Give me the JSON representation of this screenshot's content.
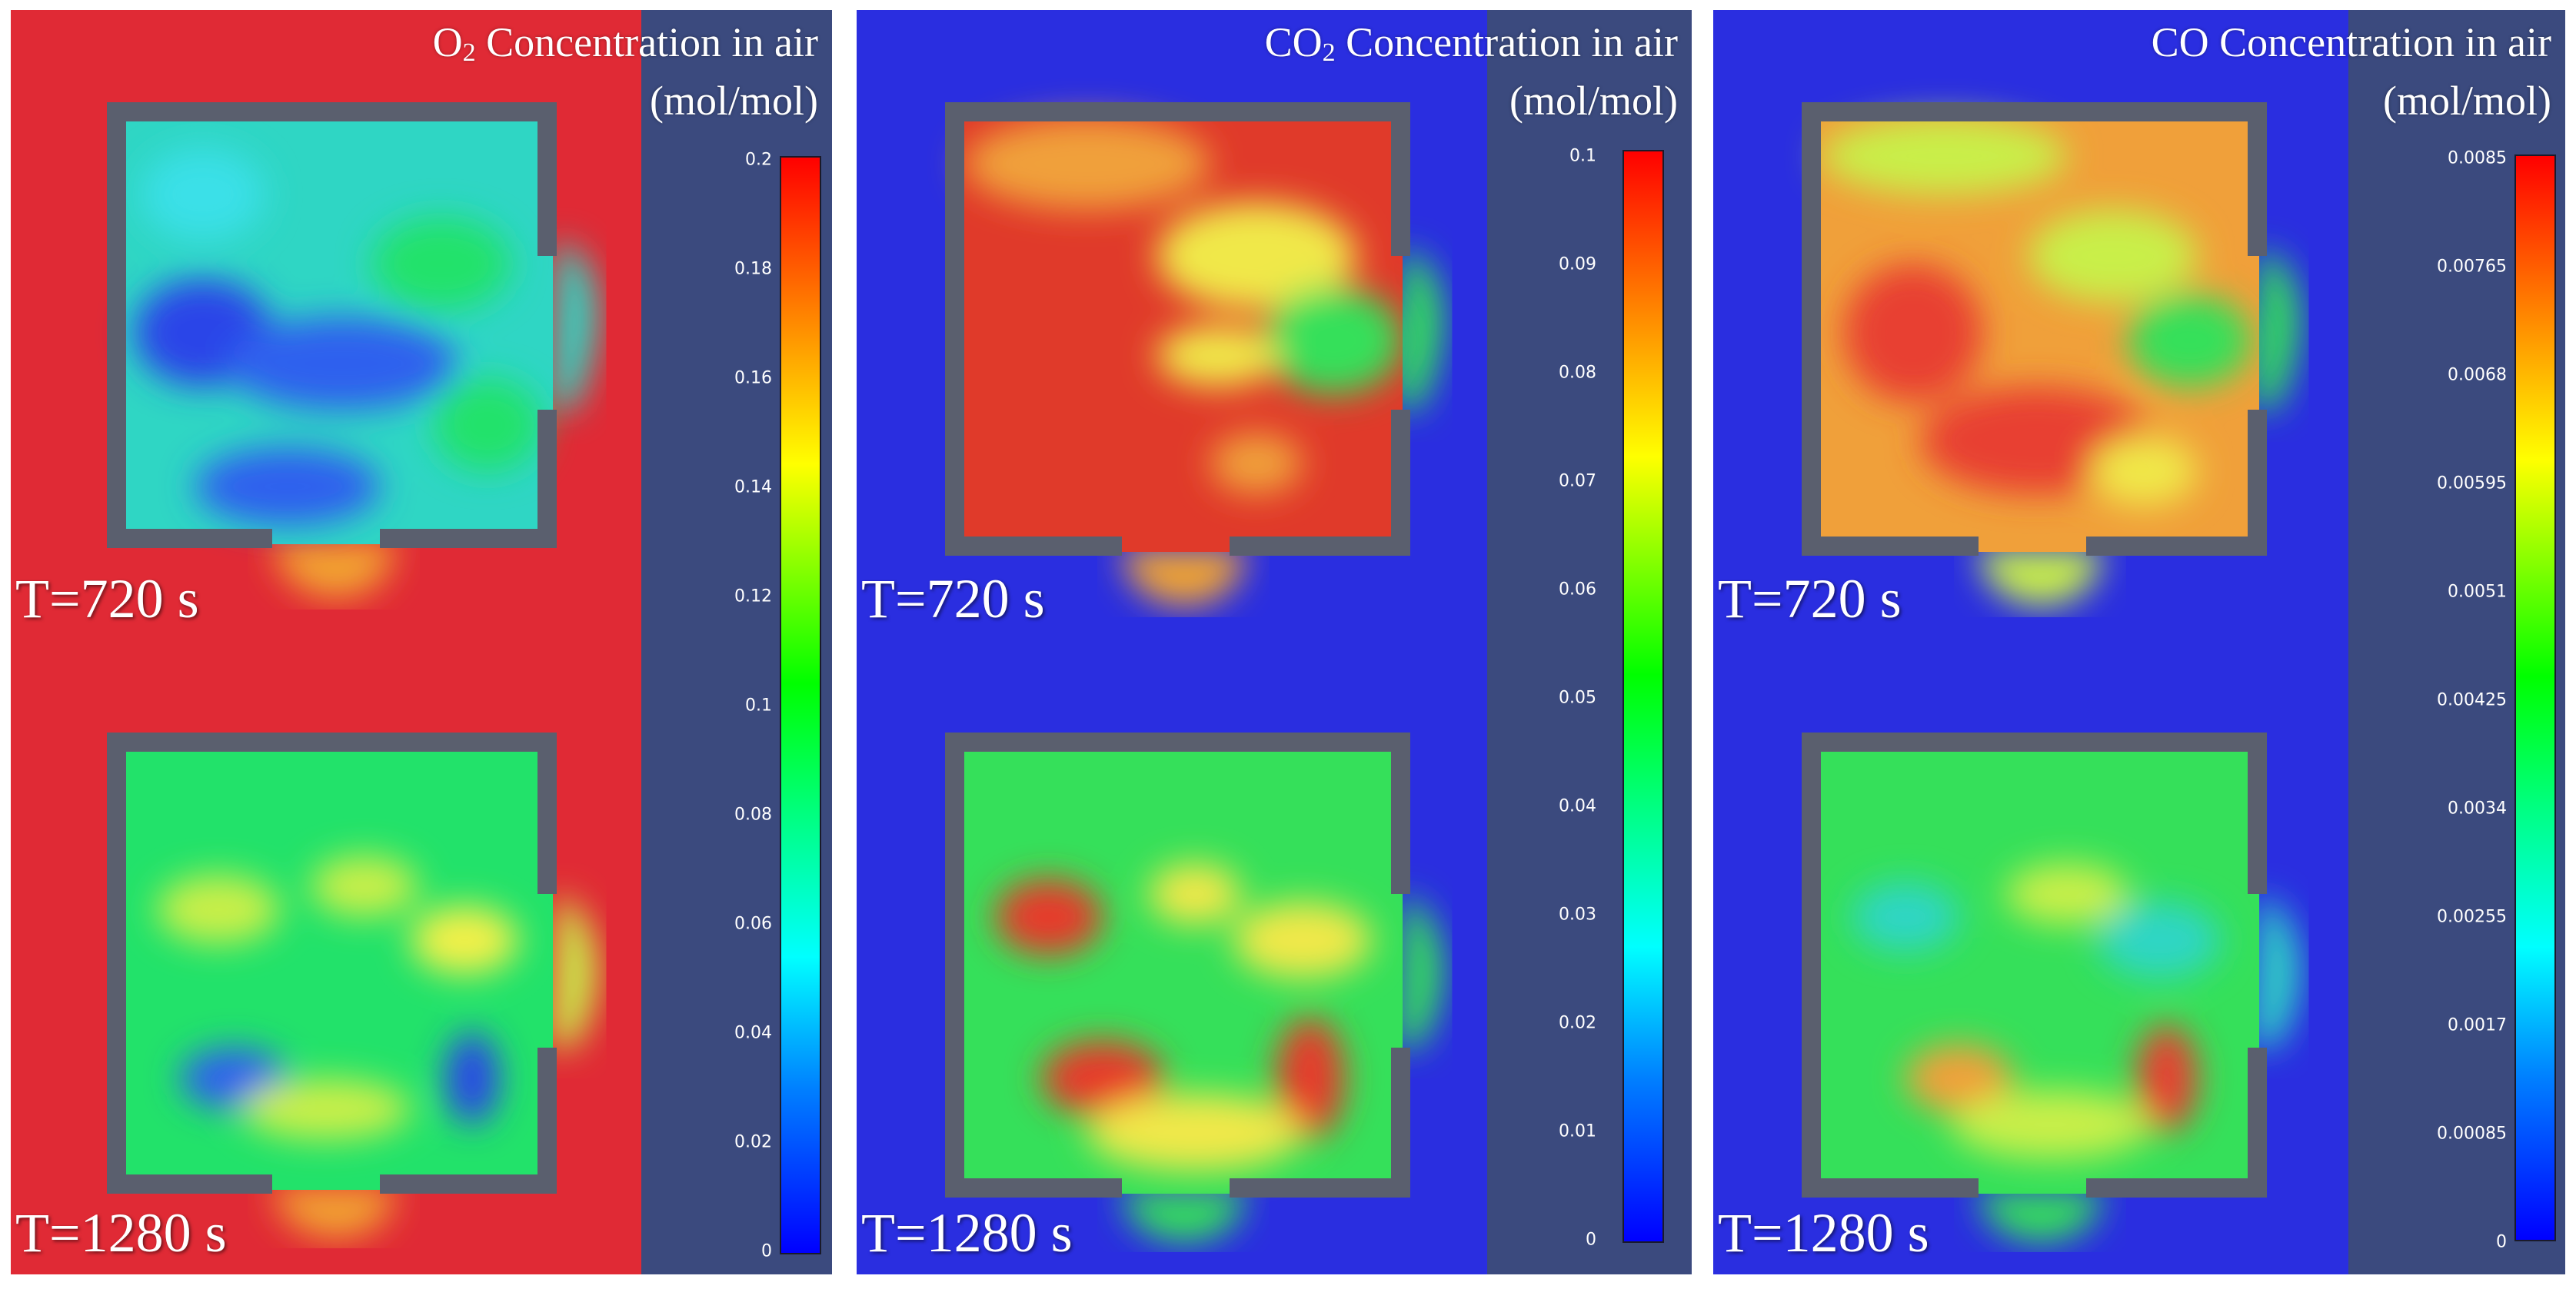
{
  "figure": {
    "panels": [
      {
        "id": "o2",
        "title_main": "O",
        "title_sub": "2",
        "title_rest": " Concentration in air",
        "units": "(mol/mol)",
        "time_top": "T=720 s",
        "time_bottom": "T=1280 s",
        "ticks": [
          "0.2",
          "0.18",
          "0.16",
          "0.14",
          "0.12",
          "0.1",
          "0.08",
          "0.06",
          "0.04",
          "0.02",
          "0"
        ],
        "colors": {
          "background": "#e02a35",
          "room_top": "#2fd6c4",
          "room_bottom": "#22e26a",
          "hot": "#2a45e8",
          "warm": "#c9ef4a",
          "plume": "#f2f04a"
        }
      },
      {
        "id": "co2",
        "title_main": "CO",
        "title_sub": "2",
        "title_rest": " Concentration in air",
        "units": "(mol/mol)",
        "time_top": "T=720 s",
        "time_bottom": "T=1280 s",
        "ticks": [
          "0.1",
          "0.09",
          "0.08",
          "0.07",
          "0.06",
          "0.05",
          "0.04",
          "0.03",
          "0.02",
          "0.01",
          "0"
        ],
        "colors": {
          "background": "#2a2ee0",
          "room_top": "#e03a2a",
          "room_bottom": "#35e05a",
          "hot": "#f0e84a",
          "warm": "#e63a2a",
          "plume": "#f2a430"
        }
      },
      {
        "id": "co",
        "title_main": "CO",
        "title_sub": "",
        "title_rest": " Concentration in air",
        "units": "(mol/mol)",
        "time_top": "T=720 s",
        "time_bottom": "T=1280 s",
        "ticks": [
          "0.0085",
          "0.00765",
          "0.0068",
          "0.00595",
          "0.0051",
          "0.00425",
          "0.0034",
          "0.00255",
          "0.0017",
          "0.00085",
          "0"
        ],
        "colors": {
          "background": "#2a2ee0",
          "room_top": "#f0a03a",
          "room_bottom": "#35e05a",
          "hot": "#e84030",
          "warm": "#e64030",
          "plume": "#c9ef4a"
        }
      }
    ]
  }
}
